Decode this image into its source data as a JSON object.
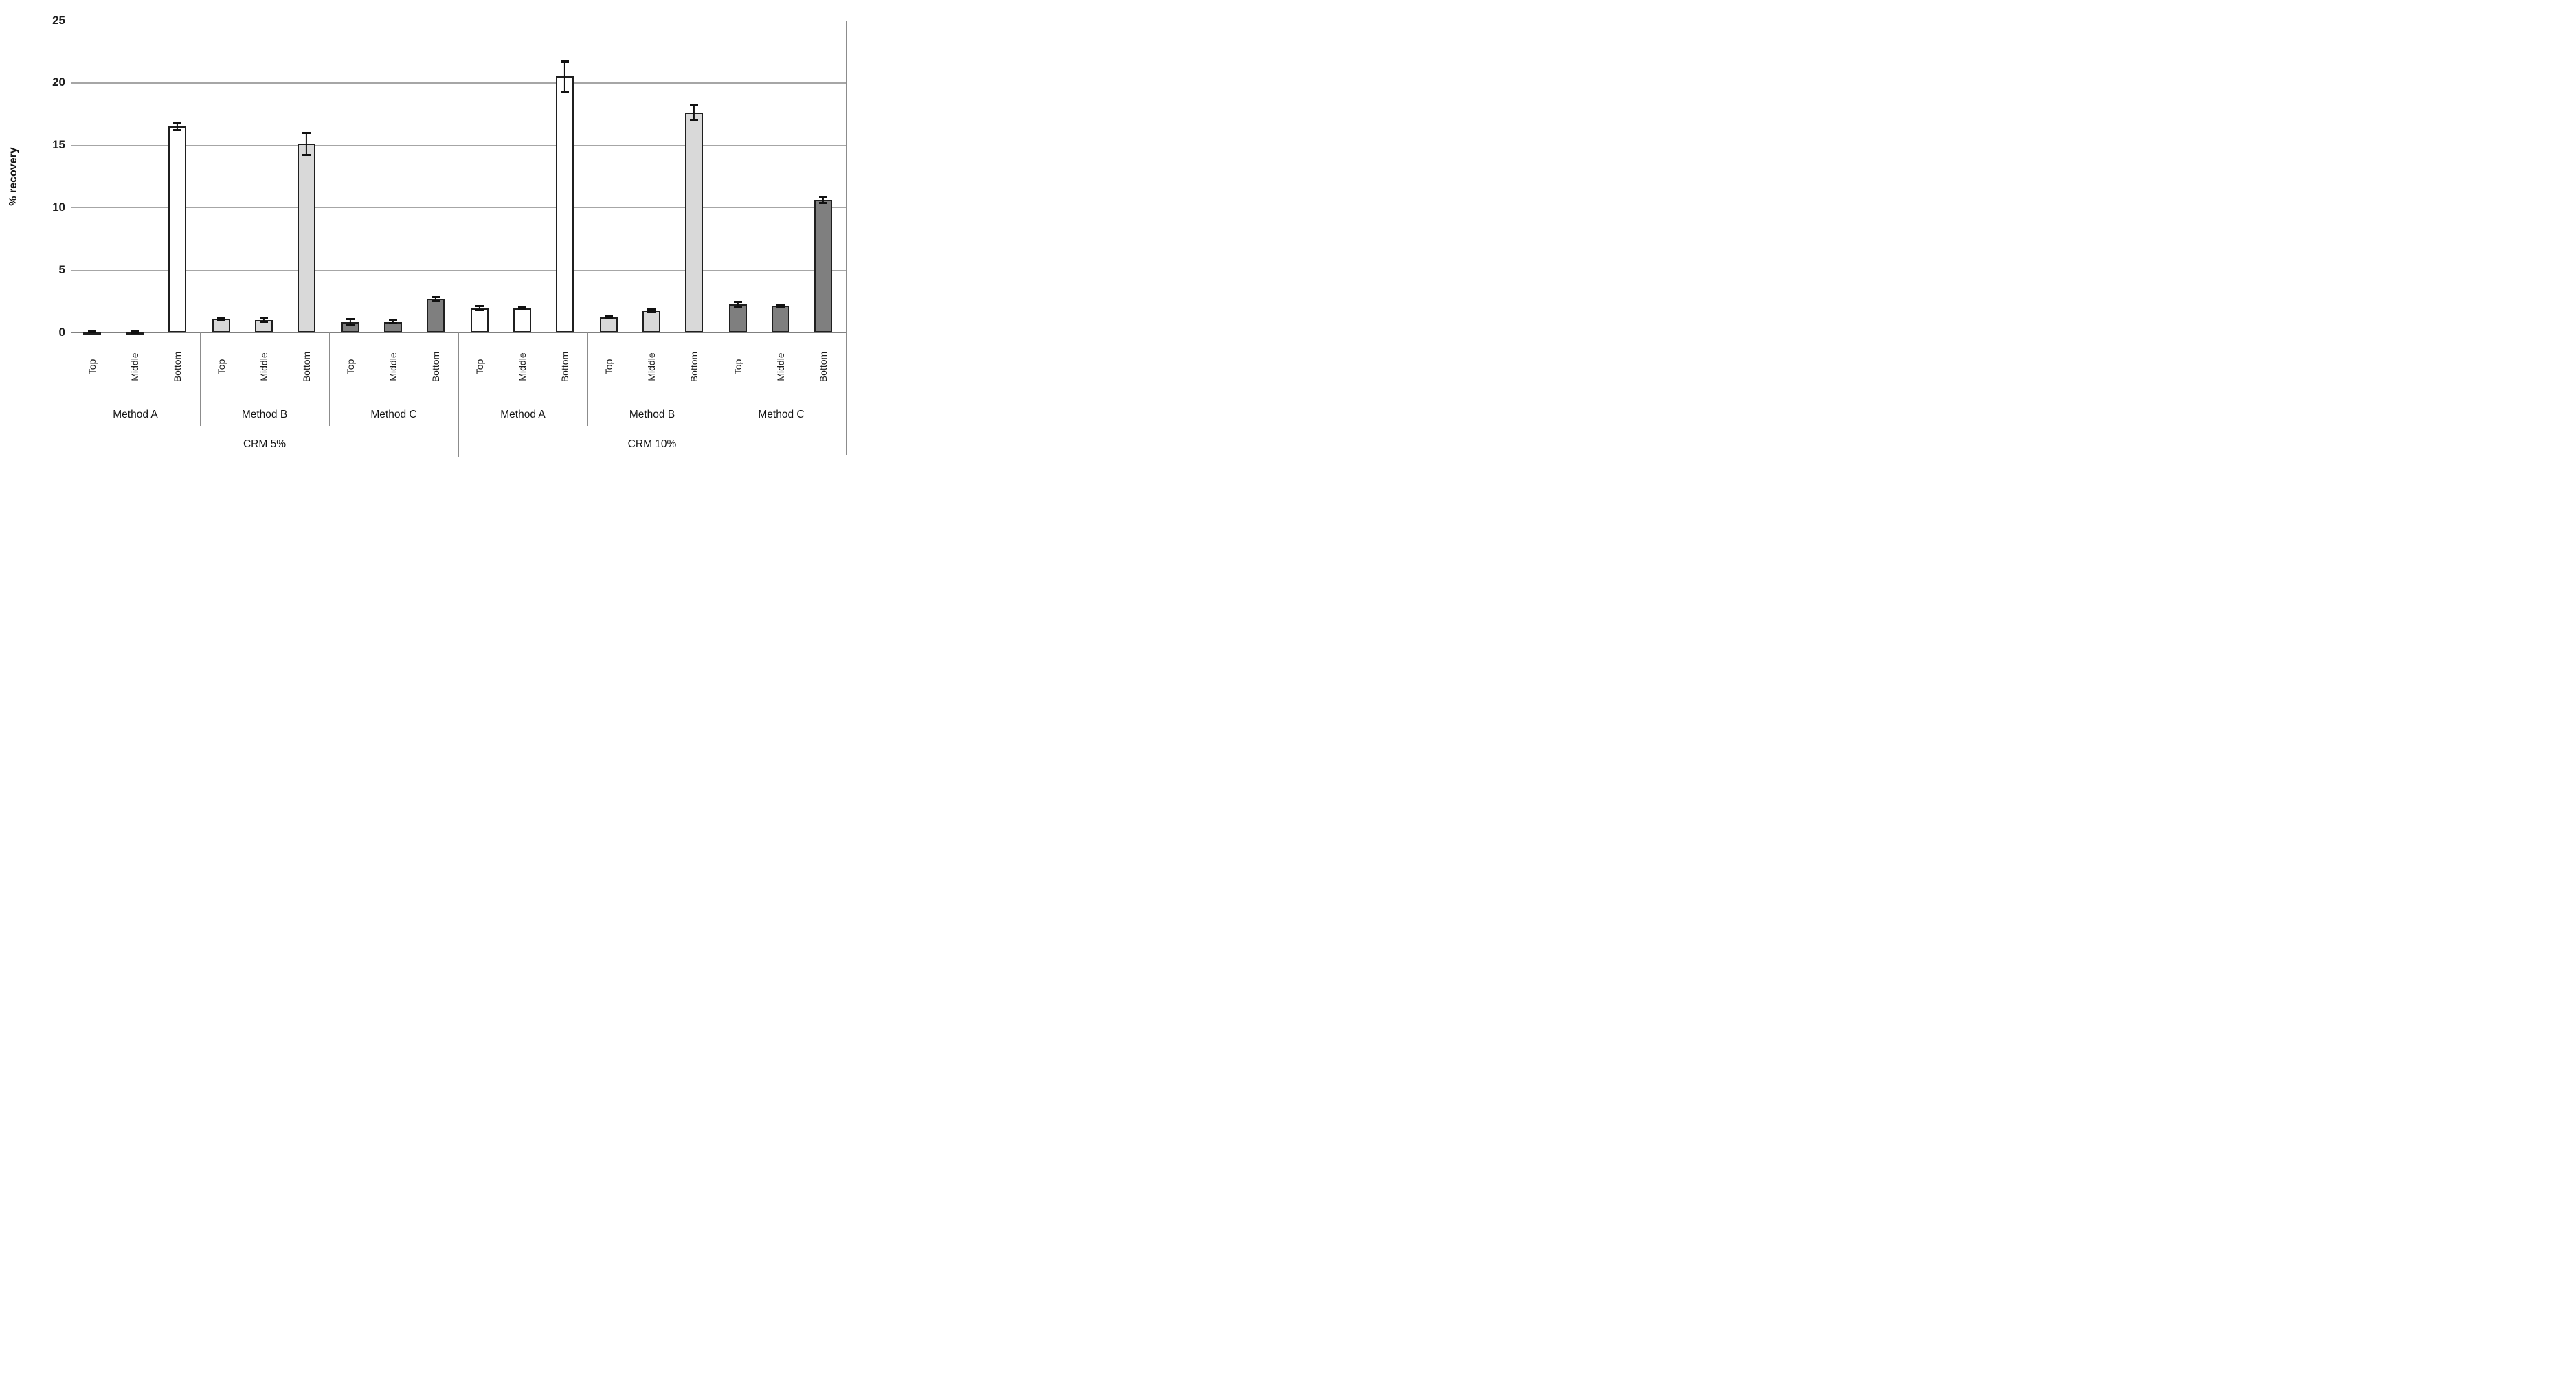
{
  "figure": {
    "background": "#ffffff"
  },
  "chart_data": {
    "type": "bar",
    "title": "",
    "xlabel": "",
    "ylabel": "% recovery",
    "ylim": [
      0,
      25
    ],
    "yticks": [
      0,
      5,
      10,
      15,
      20,
      25
    ],
    "grid": true,
    "legend_position": "none",
    "bar_labels": [
      "Top",
      "Middle",
      "Bottom"
    ],
    "crm_groups": [
      {
        "label": "CRM 5%",
        "methods": [
          "Method A",
          "Method B",
          "Method C"
        ]
      },
      {
        "label": "CRM 10%",
        "methods": [
          "Method A",
          "Method B",
          "Method C"
        ]
      }
    ],
    "groups": [
      {
        "crm": "CRM 5%",
        "method": "Method A",
        "fill": "#ffffff",
        "bars": [
          {
            "label": "Top",
            "value": 0.07,
            "error": 0.05
          },
          {
            "label": "Middle",
            "value": 0.04,
            "error": 0.03
          },
          {
            "label": "Bottom",
            "value": 16.5,
            "error": 0.3
          }
        ]
      },
      {
        "crm": "CRM 5%",
        "method": "Method B",
        "fill": "#d9d9d9",
        "bars": [
          {
            "label": "Top",
            "value": 1.1,
            "error": 0.1
          },
          {
            "label": "Middle",
            "value": 1.0,
            "error": 0.15
          },
          {
            "label": "Bottom",
            "value": 15.1,
            "error": 0.9
          }
        ]
      },
      {
        "crm": "CRM 5%",
        "method": "Method C",
        "fill": "#7f7f7f",
        "bars": [
          {
            "label": "Top",
            "value": 0.85,
            "error": 0.25
          },
          {
            "label": "Middle",
            "value": 0.85,
            "error": 0.1
          },
          {
            "label": "Bottom",
            "value": 2.7,
            "error": 0.12
          }
        ]
      },
      {
        "crm": "CRM 10%",
        "method": "Method A",
        "fill": "#ffffff",
        "bars": [
          {
            "label": "Top",
            "value": 1.95,
            "error": 0.15
          },
          {
            "label": "Middle",
            "value": 1.95,
            "error": 0.07
          },
          {
            "label": "Bottom",
            "value": 20.5,
            "error": 1.2
          }
        ]
      },
      {
        "crm": "CRM 10%",
        "method": "Method B",
        "fill": "#d9d9d9",
        "bars": [
          {
            "label": "Top",
            "value": 1.2,
            "error": 0.07
          },
          {
            "label": "Middle",
            "value": 1.75,
            "error": 0.1
          },
          {
            "label": "Bottom",
            "value": 17.6,
            "error": 0.6
          }
        ]
      },
      {
        "crm": "CRM 10%",
        "method": "Method C",
        "fill": "#7f7f7f",
        "bars": [
          {
            "label": "Top",
            "value": 2.25,
            "error": 0.2
          },
          {
            "label": "Middle",
            "value": 2.15,
            "error": 0.1
          },
          {
            "label": "Bottom",
            "value": 10.6,
            "error": 0.25
          }
        ]
      }
    ],
    "colors": {
      "fill_method_a": "#ffffff",
      "fill_method_b": "#d9d9d9",
      "fill_method_c": "#7f7f7f",
      "bar_outline": "#1f1f1f",
      "error_bar": "#111111",
      "gridline": "#a6a6a6",
      "axis_line": "#8c8c8c",
      "text": "#1a1a1a"
    }
  }
}
